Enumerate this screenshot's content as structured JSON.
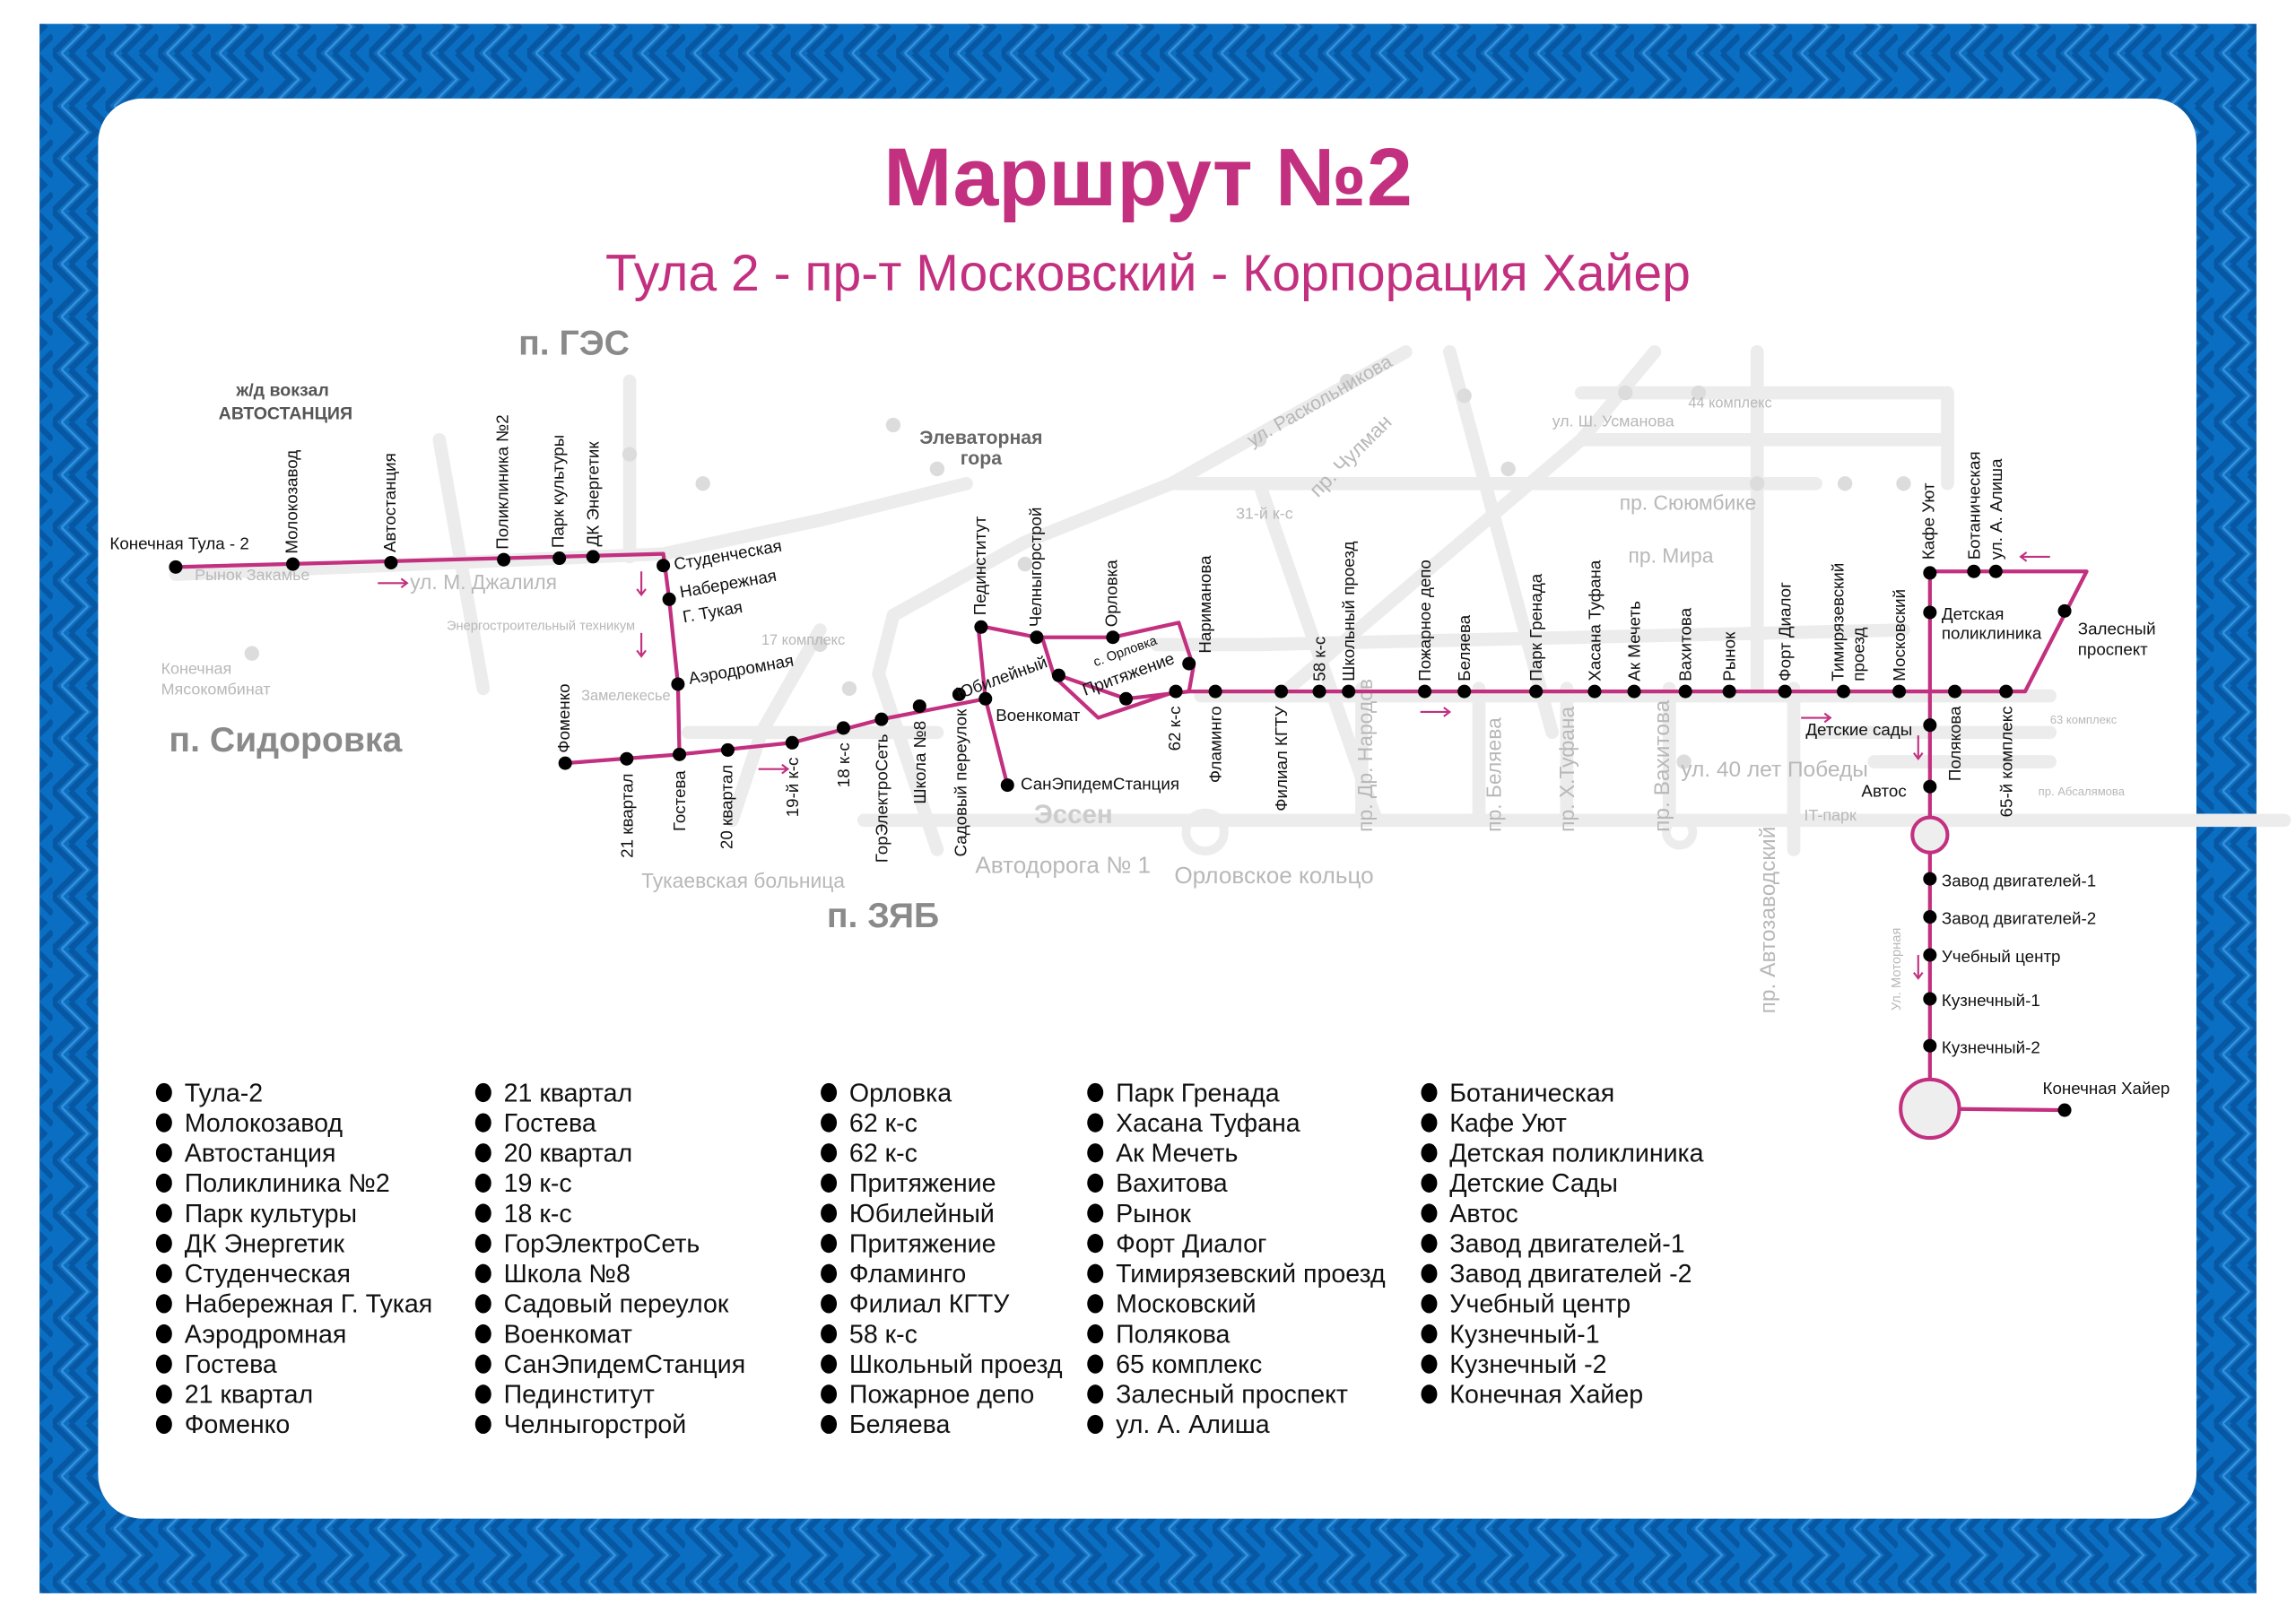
{
  "colors": {
    "border_blue": "#0a6fc2",
    "border_dark": "#0857a3",
    "route": "#c2307f",
    "stop": "#000000",
    "street": "#ececec",
    "card": "#ffffff"
  },
  "header": {
    "title": "Маршрут №2",
    "subtitle": "Тула 2 - пр-т Московский - Корпорация Хайер"
  },
  "map": {
    "areas": [
      "п. ГЭС",
      "п. Сидоровка",
      "п. ЗЯБ"
    ],
    "landmarks": [
      "ж/д вокзал",
      "АВТОСТАНЦИЯ",
      "Элеваторная",
      "гора",
      "Эссен"
    ],
    "streets": [
      "ул. М. Джалиля",
      "Автодорога № 1",
      "Орловское кольцо",
      "пр. Сююмбике",
      "пр. Мира",
      "ул. 40 лет Победы",
      "ул. Раскольникова",
      "пр. Чулман",
      "31-й к-с",
      "17 комплекс",
      "44 комплекс",
      "ул. Ш. Усманова",
      "Конечная",
      "Мясокомбинат",
      "Замелекесье",
      "Тукаевская больница",
      "IT-парк",
      "Ул. Моторная",
      "63 комплекс",
      "пр. Абсалямова",
      "пр. Автозаводский",
      "пр. Вахитова",
      "пр. Х.Туфана",
      "пр. Беляева",
      "пр. Др. Народов",
      "Рынок Закамье",
      "Энергостроительный техникум"
    ],
    "stop_labels": [
      "Конечная Тула - 2",
      "Молокозавод",
      "Автостанция",
      "Поликлиника №2",
      "Парк культуры",
      "ДК Энергетик",
      "Студенческая",
      "Набережная",
      "Г. Тукая",
      "Аэродромная",
      "Гостева",
      "21 квартал",
      "Фоменко",
      "20 квартал",
      "19-й к-с",
      "18 к-с",
      "ГорЭлектроСеть",
      "Школа №8",
      "Садовый переулок",
      "Военкомат",
      "СанЭпидемСтанция",
      "Пединститут",
      "Челныгорстрой",
      "Орловка",
      "Юбилейный",
      "с. Орловка",
      "Притяжение",
      "Нариманова",
      "62 к-с",
      "Фламинго",
      "Филиал КГТУ",
      "58 к-с",
      "Школьный проезд",
      "Пожарное депо",
      "Беляева",
      "Парк Гренада",
      "Хасана Туфана",
      "Ак Мечеть",
      "Вахитова",
      "Рынок",
      "Форт Диалог",
      "Тимирязевский",
      "проезд",
      "Московский",
      "Полякова",
      "65-й комплекс",
      "Залесный",
      "проспект",
      "ул. А. Алиша",
      "Ботаническая",
      "Кафе Уют",
      "Детская",
      "поликлиника",
      "Детские сады",
      "Автос",
      "Завод двигателей-1",
      "Завод двигателей-2",
      "Учебный центр",
      "Кузнечный-1",
      "Кузнечный-2",
      "Конечная Хайер"
    ]
  },
  "legend": {
    "columns": [
      [
        "Тула-2",
        "Молокозавод",
        "Автостанция",
        "Поликлиника №2",
        "Парк культуры",
        "ДК Энергетик",
        "Студенческая",
        "Набережная Г. Тукая",
        "Аэродромная",
        "Гостева",
        "21 квартал",
        "Фоменко"
      ],
      [
        "21 квартал",
        "Гостева",
        "20 квартал",
        "19 к-с",
        "18 к-с",
        "ГорЭлектроСеть",
        "Школа №8",
        "Садовый переулок",
        "Военкомат",
        "СанЭпидемСтанция",
        "Пединститут",
        "Челныгорстрой"
      ],
      [
        "Орловка",
        "62 к-с",
        "62 к-с",
        "Притяжение",
        "Юбилейный",
        "Притяжение",
        "Фламинго",
        "Филиал КГТУ",
        "58 к-с",
        "Школьный проезд",
        "Пожарное депо",
        "Беляева"
      ],
      [
        "Парк Гренада",
        "Хасана Туфана",
        "Ак Мечеть",
        "Вахитова",
        "Рынок",
        "Форт Диалог",
        "Тимирязевский проезд",
        "Московский",
        "Полякова",
        "65 комплекс",
        "Залесный проспект",
        "ул. А. Алиша"
      ],
      [
        "Ботаническая",
        "Кафе Уют",
        "Детская поликлиника",
        "Детские Сады",
        "Автос",
        "Завод двигателей-1",
        "Завод двигателей -2",
        "Учебный центр",
        "Кузнечный-1",
        "Кузнечный -2",
        "Конечная Хайер"
      ]
    ]
  }
}
